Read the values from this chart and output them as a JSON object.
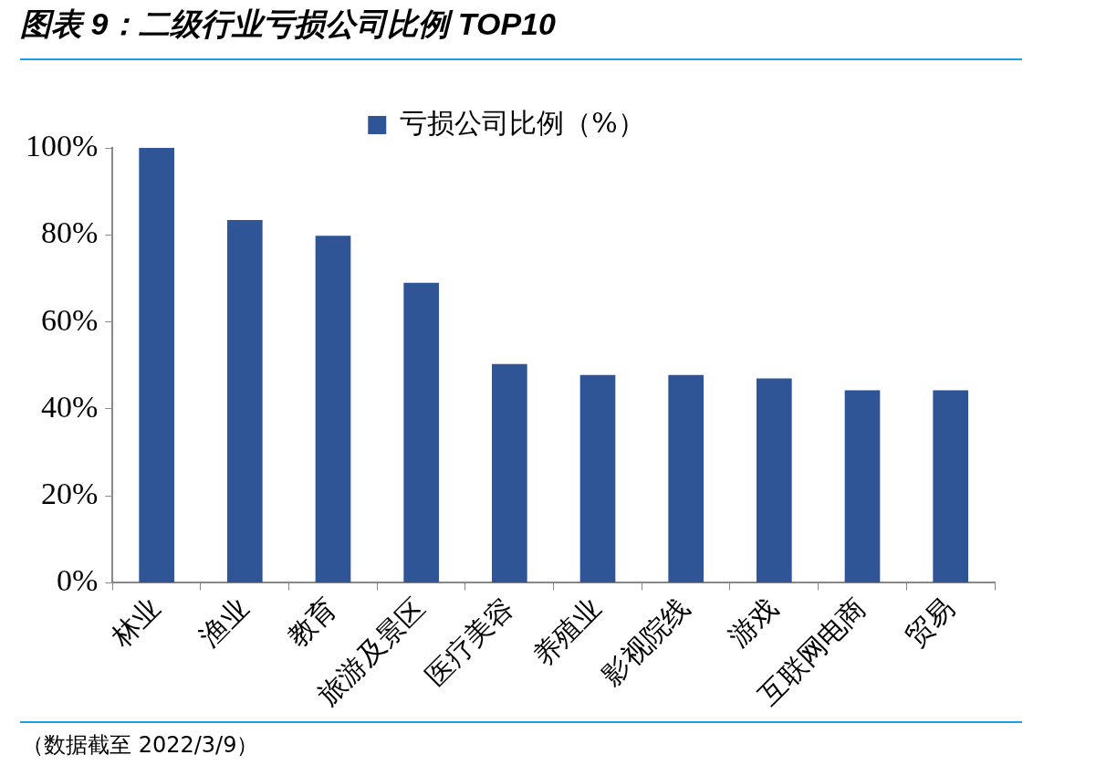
{
  "chart_data": {
    "type": "bar",
    "title": "图表 9：二级行业亏损公司比例 TOP10",
    "categories": [
      "林业",
      "渔业",
      "教育",
      "旅游及景区",
      "医疗美容",
      "养殖业",
      "影视院线",
      "游戏",
      "互联网电商",
      "贸易"
    ],
    "series": [
      {
        "name": "亏损公司比例（%）",
        "color": "#2f5597",
        "values": [
          100,
          83.4,
          79.8,
          69,
          50.3,
          47.8,
          47.8,
          47,
          44.3,
          44.3
        ]
      }
    ],
    "ylim": [
      0,
      100
    ],
    "yticks": [
      {
        "value": 0,
        "label": "0%"
      },
      {
        "value": 20,
        "label": "20%"
      },
      {
        "value": 40,
        "label": "40%"
      },
      {
        "value": 60,
        "label": "60%"
      },
      {
        "value": 80,
        "label": "80%"
      },
      {
        "value": 100,
        "label": "100%"
      }
    ],
    "grid": false,
    "legend": "top",
    "annotations": [
      "（数据截至 2022/3/9）"
    ]
  }
}
